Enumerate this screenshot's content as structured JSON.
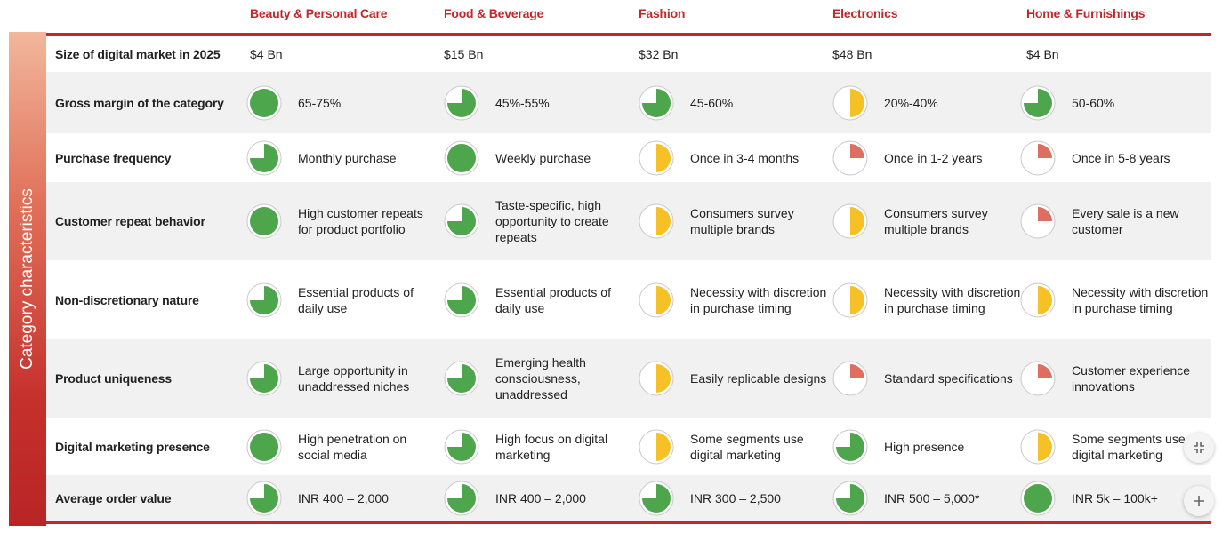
{
  "side_label": "Category characteristics",
  "colors": {
    "green": "#4da64b",
    "yellow": "#f6c127",
    "red": "#de6e62",
    "accent": "#c0282d"
  },
  "columns": [
    "Beauty & Personal Care",
    "Food & Beverage",
    "Fashion",
    "Electronics",
    "Home & Furnishings"
  ],
  "market_row": {
    "label": "Size of digital market in 2025",
    "values": [
      "$4 Bn",
      "$15 Bn",
      "$32 Bn",
      "$48 Bn",
      "$4 Bn"
    ]
  },
  "rows": [
    {
      "label": "Gross margin of the category",
      "cells": [
        {
          "score": 1.0,
          "color": "green",
          "text": "65-75%"
        },
        {
          "score": 0.75,
          "color": "green",
          "text": "45%-55%"
        },
        {
          "score": 0.75,
          "color": "green",
          "text": "45-60%"
        },
        {
          "score": 0.5,
          "color": "yellow",
          "text": "20%-40%"
        },
        {
          "score": 0.75,
          "color": "green",
          "text": "50-60%"
        }
      ]
    },
    {
      "label": "Purchase frequency",
      "cells": [
        {
          "score": 0.75,
          "color": "green",
          "text": "Monthly purchase"
        },
        {
          "score": 1.0,
          "color": "green",
          "text": "Weekly purchase"
        },
        {
          "score": 0.5,
          "color": "yellow",
          "text": "Once in 3-4 months"
        },
        {
          "score": 0.25,
          "color": "red",
          "text": "Once in 1-2 years"
        },
        {
          "score": 0.25,
          "color": "red",
          "text": "Once in 5-8 years"
        }
      ]
    },
    {
      "label": "Customer repeat behavior",
      "cells": [
        {
          "score": 1.0,
          "color": "green",
          "text": "High customer repeats for product portfolio"
        },
        {
          "score": 0.75,
          "color": "green",
          "text": "Taste-specific, high opportunity to create repeats"
        },
        {
          "score": 0.5,
          "color": "yellow",
          "text": "Consumers survey multiple brands"
        },
        {
          "score": 0.5,
          "color": "yellow",
          "text": "Consumers survey multiple brands"
        },
        {
          "score": 0.25,
          "color": "red",
          "text": "Every sale is a new customer"
        }
      ]
    },
    {
      "label": "Non-discretionary nature",
      "cells": [
        {
          "score": 0.75,
          "color": "green",
          "text": "Essential products of daily use"
        },
        {
          "score": 0.75,
          "color": "green",
          "text": "Essential products of daily use"
        },
        {
          "score": 0.5,
          "color": "yellow",
          "text": "Necessity with discretion in purchase timing"
        },
        {
          "score": 0.5,
          "color": "yellow",
          "text": "Necessity with discretion in purchase timing"
        },
        {
          "score": 0.5,
          "color": "yellow",
          "text": "Necessity with discretion in purchase timing"
        }
      ]
    },
    {
      "label": "Product uniqueness",
      "cells": [
        {
          "score": 0.75,
          "color": "green",
          "text": "Large opportunity in unaddressed niches"
        },
        {
          "score": 0.75,
          "color": "green",
          "text": "Emerging health consciousness, unaddressed"
        },
        {
          "score": 0.5,
          "color": "yellow",
          "text": "Easily replicable designs"
        },
        {
          "score": 0.25,
          "color": "red",
          "text": "Standard specifications"
        },
        {
          "score": 0.25,
          "color": "red",
          "text": "Customer experience innovations"
        }
      ]
    },
    {
      "label": "Digital marketing presence",
      "cells": [
        {
          "score": 1.0,
          "color": "green",
          "text": "High penetration on social media"
        },
        {
          "score": 0.75,
          "color": "green",
          "text": "High focus on digital marketing"
        },
        {
          "score": 0.5,
          "color": "yellow",
          "text": "Some segments use digital marketing"
        },
        {
          "score": 0.75,
          "color": "green",
          "text": "High presence"
        },
        {
          "score": 0.5,
          "color": "yellow",
          "text": "Some segments use digital marketing"
        }
      ]
    },
    {
      "label": "Average order value",
      "cells": [
        {
          "score": 0.75,
          "color": "green",
          "text": "INR 400 – 2,000"
        },
        {
          "score": 0.75,
          "color": "green",
          "text": "INR 400 – 2,000"
        },
        {
          "score": 0.75,
          "color": "green",
          "text": "INR 300 – 2,500"
        },
        {
          "score": 0.75,
          "color": "green",
          "text": "INR 500 – 5,000*"
        },
        {
          "score": 1.0,
          "color": "green",
          "text": "INR 5k – 100k+"
        }
      ]
    }
  ]
}
